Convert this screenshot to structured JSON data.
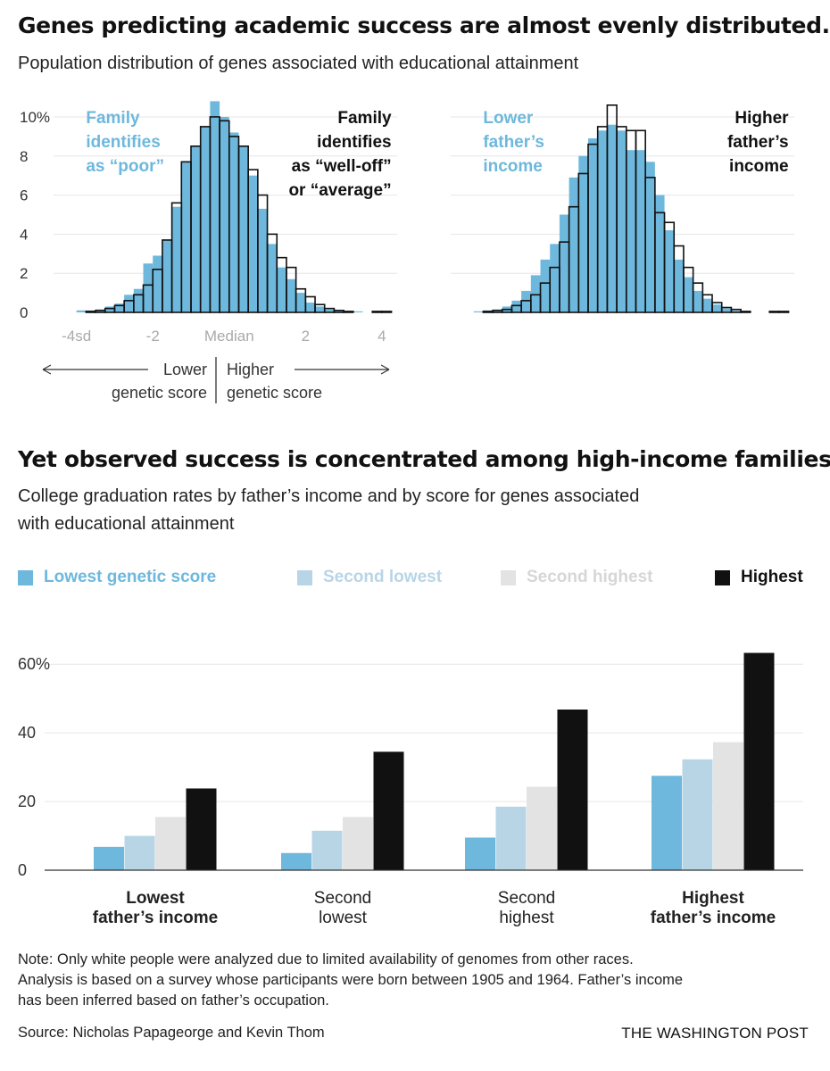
{
  "top": {
    "title": "Genes predicting academic success are almost evenly distributed.",
    "subtitle": "Population distribution of genes associated with educational attainment"
  },
  "bottom": {
    "title": "Yet observed success is concentrated among high-income families.",
    "subtitle_line1": "College graduation rates by father’s income and by score for genes associated",
    "subtitle_line2": "with educational attainment"
  },
  "footer": {
    "note_line1": "Note: Only white people were analyzed due to limited availability of genomes from other races.",
    "note_line2": "Analysis is based on a survey whose participants were born between 1905 and 1964. Father’s income",
    "note_line3": "has been inferred based on father’s occupation.",
    "source": "Source: Nicholas Papageorge and Kevin Thom",
    "brand": "THE WASHINGTON POST"
  },
  "colors": {
    "blue": "#6db8dc",
    "light_blue": "#b8d5e6",
    "light_gray": "#e3e3e3",
    "black": "#111111",
    "axis_gray": "#999999",
    "grid": "#e6e6e6"
  },
  "chart_data": [
    {
      "type": "bar",
      "chart": "histogram-family-identification",
      "y_ticks": [
        {
          "value": 0,
          "label": "0"
        },
        {
          "value": 2,
          "label": "2"
        },
        {
          "value": 4,
          "label": "4"
        },
        {
          "value": 6,
          "label": "6"
        },
        {
          "value": 8,
          "label": "8"
        },
        {
          "value": 10,
          "label": "10%"
        }
      ],
      "x_ticks": [
        {
          "value": -4,
          "label": "-4sd"
        },
        {
          "value": -2,
          "label": "-2"
        },
        {
          "value": 0,
          "label": "Median"
        },
        {
          "value": 2,
          "label": "2"
        },
        {
          "value": 4,
          "label": "4"
        }
      ],
      "xlim": [
        -4.6,
        4.4
      ],
      "ylim": [
        0,
        10.5
      ],
      "bin_start": -4.25,
      "bin_width": 0.25,
      "series": [
        {
          "name": "Family identifies as “poor”",
          "color": "#6db8dc",
          "values": [
            0.0,
            0.1,
            0.1,
            0.15,
            0.3,
            0.45,
            0.9,
            1.2,
            2.5,
            2.9,
            3.7,
            5.4,
            7.7,
            8.5,
            9.5,
            10.8,
            10.0,
            9.2,
            8.5,
            7.0,
            5.3,
            3.5,
            2.3,
            1.7,
            1.0,
            0.5,
            0.3,
            0.15,
            0.1,
            0.05,
            0.05,
            0.0,
            0.0,
            0.0
          ]
        },
        {
          "name": "Family identifies as “well-off” or “average”",
          "color": "#111111",
          "values": [
            0.0,
            0.0,
            0.05,
            0.1,
            0.2,
            0.35,
            0.6,
            0.9,
            1.4,
            2.2,
            3.7,
            5.6,
            7.7,
            8.5,
            9.5,
            10.0,
            9.8,
            9.0,
            8.5,
            7.3,
            6.0,
            4.0,
            2.8,
            2.3,
            1.2,
            0.8,
            0.4,
            0.2,
            0.1,
            0.05,
            0.0,
            0.0,
            0.05,
            0.05
          ]
        }
      ],
      "annotations": {
        "left": [
          "Family",
          "identifies",
          "as “poor”"
        ],
        "right": [
          "Family",
          "identifies",
          "as “well-off”",
          "or “average”"
        ]
      },
      "direction": {
        "lower": [
          "Lower",
          "genetic score"
        ],
        "higher": [
          "Higher",
          "genetic score"
        ]
      }
    },
    {
      "type": "bar",
      "chart": "histogram-father-income",
      "xlim": [
        -4.6,
        4.4
      ],
      "ylim": [
        0,
        10.5
      ],
      "bin_start": -4.25,
      "bin_width": 0.25,
      "series": [
        {
          "name": "Lower father’s income",
          "color": "#6db8dc",
          "values": [
            0.0,
            0.05,
            0.1,
            0.15,
            0.3,
            0.6,
            1.1,
            1.9,
            2.7,
            3.5,
            5.0,
            6.9,
            8.0,
            8.9,
            9.3,
            9.6,
            9.3,
            8.3,
            8.3,
            7.7,
            6.0,
            4.2,
            2.7,
            1.8,
            1.1,
            0.7,
            0.4,
            0.2,
            0.1,
            0.05,
            0.0,
            0.0,
            0.0,
            0.0
          ]
        },
        {
          "name": "Higher father’s income",
          "color": "#111111",
          "values": [
            0.0,
            0.0,
            0.05,
            0.1,
            0.15,
            0.35,
            0.6,
            0.9,
            1.5,
            2.3,
            3.6,
            5.4,
            7.1,
            8.6,
            9.5,
            10.6,
            9.5,
            9.3,
            9.3,
            6.9,
            5.1,
            4.6,
            3.4,
            2.3,
            1.5,
            0.9,
            0.5,
            0.25,
            0.15,
            0.05,
            0.0,
            0.0,
            0.05,
            0.05
          ]
        }
      ],
      "annotations": {
        "left": [
          "Lower",
          "father’s",
          "income"
        ],
        "right": [
          "Higher",
          "father’s",
          "income"
        ]
      }
    },
    {
      "type": "bar",
      "chart": "graduation-rates",
      "categories": [
        {
          "line1": "Lowest",
          "line2": "father’s income",
          "bold": true
        },
        {
          "line1": "Second",
          "line2": "lowest",
          "bold": false
        },
        {
          "line1": "Second",
          "line2": "highest",
          "bold": false
        },
        {
          "line1": "Highest",
          "line2": "father’s income",
          "bold": true
        }
      ],
      "series": [
        {
          "name": "Lowest genetic score",
          "color": "#6db8dc",
          "values": [
            6.8,
            5.0,
            9.5,
            27.5
          ]
        },
        {
          "name": "Second lowest",
          "color": "#b8d5e6",
          "values": [
            10.0,
            11.5,
            18.5,
            32.3
          ]
        },
        {
          "name": "Second highest",
          "color": "#e3e3e3",
          "values": [
            15.5,
            15.5,
            24.3,
            37.3
          ]
        },
        {
          "name": "Highest",
          "color": "#111111",
          "values": [
            23.8,
            34.5,
            46.8,
            63.3
          ]
        }
      ],
      "y_ticks": [
        {
          "value": 0,
          "label": "0"
        },
        {
          "value": 20,
          "label": "20"
        },
        {
          "value": 40,
          "label": "40"
        },
        {
          "value": 60,
          "label": "60%"
        }
      ],
      "ylim": [
        0,
        65
      ],
      "legend_position": "top"
    }
  ]
}
